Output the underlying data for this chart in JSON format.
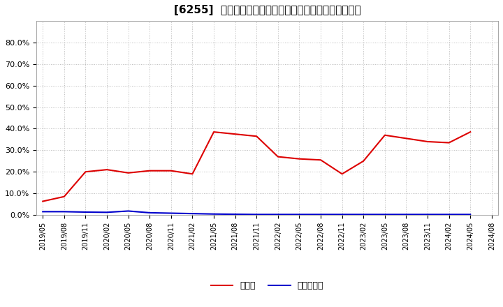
{
  "title": "[6255]  現預金、有利子負債の総資産に対する比率の推移",
  "background_color": "#ffffff",
  "plot_bg_color": "#ffffff",
  "grid_color": "#bbbbbb",
  "x_labels": [
    "2019/05",
    "2019/08",
    "2019/11",
    "2020/02",
    "2020/05",
    "2020/08",
    "2020/11",
    "2021/02",
    "2021/05",
    "2021/08",
    "2021/11",
    "2022/02",
    "2022/05",
    "2022/08",
    "2022/11",
    "2023/02",
    "2023/05",
    "2023/08",
    "2023/11",
    "2024/02",
    "2024/05",
    "2024/08"
  ],
  "cash_values": [
    6.3,
    8.5,
    20.0,
    21.0,
    19.5,
    20.5,
    20.5,
    19.0,
    38.5,
    37.5,
    36.5,
    27.0,
    26.0,
    25.5,
    19.0,
    25.0,
    37.0,
    35.5,
    34.0,
    33.5,
    38.5,
    null
  ],
  "debt_values": [
    1.5,
    1.5,
    1.3,
    1.2,
    1.8,
    1.0,
    0.8,
    0.6,
    0.4,
    0.3,
    0.2,
    0.2,
    0.2,
    0.2,
    0.2,
    0.2,
    0.2,
    0.2,
    0.2,
    0.2,
    0.2,
    null
  ],
  "cash_color": "#dd0000",
  "debt_color": "#0000cc",
  "legend_cash": "現預金",
  "legend_debt": "有利子負債",
  "ylim_min": 0.0,
  "ylim_max": 0.9,
  "yticks": [
    0.0,
    0.1,
    0.2,
    0.3,
    0.4,
    0.5,
    0.6,
    0.7,
    0.8
  ],
  "ytick_labels": [
    "0.0%",
    "10.0%",
    "20.0%",
    "30.0%",
    "40.0%",
    "50.0%",
    "60.0%",
    "70.0%",
    "80.0%"
  ],
  "title_fontsize": 11,
  "tick_fontsize": 8,
  "legend_fontsize": 9
}
